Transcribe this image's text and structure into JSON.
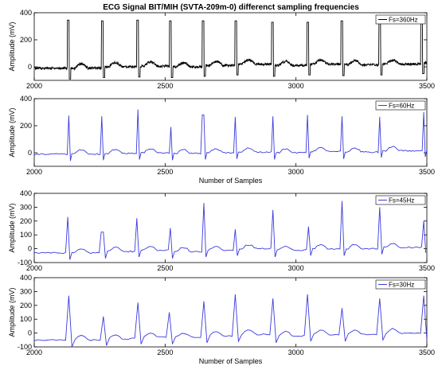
{
  "title": "ECG Signal BIT/MIH (SVTA-209m-0) differenct sampling frequencies",
  "chart_data": [
    {
      "type": "line",
      "legend": "Fs=360Hz",
      "color": "#000000",
      "xlabel": "",
      "ylabel": "Amplitude (mV)",
      "xlim": [
        2000,
        3500
      ],
      "ylim": [
        -100,
        400
      ],
      "xticks": [
        2000,
        2500,
        3000,
        3500
      ],
      "yticks": [
        0,
        200,
        400
      ],
      "beats": [
        2130,
        2260,
        2395,
        2520,
        2645,
        2770,
        2910,
        3045,
        3175,
        3320,
        3480
      ],
      "peaks": [
        345,
        340,
        345,
        340,
        340,
        340,
        330,
        330,
        340,
        345,
        335
      ],
      "baseline": [
        -10,
        0,
        5,
        0,
        10,
        20,
        10,
        20,
        15,
        20,
        30
      ]
    },
    {
      "type": "line",
      "legend": "Fs=60Hz",
      "color": "#3b3bdc",
      "xlabel": "Number of Samples",
      "ylabel": "Amplitude (mV)",
      "xlim": [
        2000,
        3500
      ],
      "ylim": [
        -100,
        400
      ],
      "xticks": [
        2000,
        2500,
        3000,
        3500
      ],
      "yticks": [
        0,
        200,
        400
      ],
      "beats": [
        2130,
        2260,
        2395,
        2520,
        2645,
        2770,
        2910,
        3045,
        3175,
        3320,
        3490
      ],
      "peaks": [
        275,
        270,
        320,
        190,
        280,
        265,
        270,
        280,
        270,
        265,
        300
      ],
      "baseline": [
        -10,
        -5,
        0,
        -5,
        0,
        5,
        0,
        10,
        5,
        15,
        20
      ]
    },
    {
      "type": "line",
      "legend": "Fs=45Hz",
      "color": "#3b3bdc",
      "xlabel": "",
      "ylabel": "Amplitude (mV)",
      "xlim": [
        2000,
        3500
      ],
      "ylim": [
        -100,
        400
      ],
      "xticks": [
        2000,
        2500,
        3000,
        3500
      ],
      "yticks": [
        -100,
        0,
        100,
        200,
        300,
        400
      ],
      "beats": [
        2130,
        2260,
        2395,
        2520,
        2645,
        2770,
        2910,
        3045,
        3175,
        3320,
        3490
      ],
      "peaks": [
        230,
        120,
        220,
        150,
        330,
        140,
        280,
        160,
        345,
        300,
        200
      ],
      "baseline": [
        -30,
        -20,
        -10,
        -20,
        -10,
        0,
        -10,
        0,
        0,
        10,
        20
      ]
    },
    {
      "type": "line",
      "legend": "Fs=30Hz",
      "color": "#3b3bdc",
      "xlabel": "Number of Samples",
      "ylabel": "Amplitude (mV)",
      "xlim": [
        2000,
        3500
      ],
      "ylim": [
        -100,
        400
      ],
      "xticks": [
        2000,
        2500,
        3000,
        3500
      ],
      "yticks": [
        -100,
        0,
        100,
        200,
        300,
        400
      ],
      "beats": [
        2130,
        2260,
        2395,
        2520,
        2645,
        2770,
        2910,
        3045,
        3175,
        3320,
        3490
      ],
      "peaks": [
        270,
        120,
        220,
        150,
        230,
        280,
        250,
        280,
        180,
        250,
        270
      ],
      "baseline": [
        -50,
        -40,
        -30,
        -30,
        -20,
        -10,
        -20,
        -10,
        -10,
        0,
        0
      ]
    }
  ]
}
